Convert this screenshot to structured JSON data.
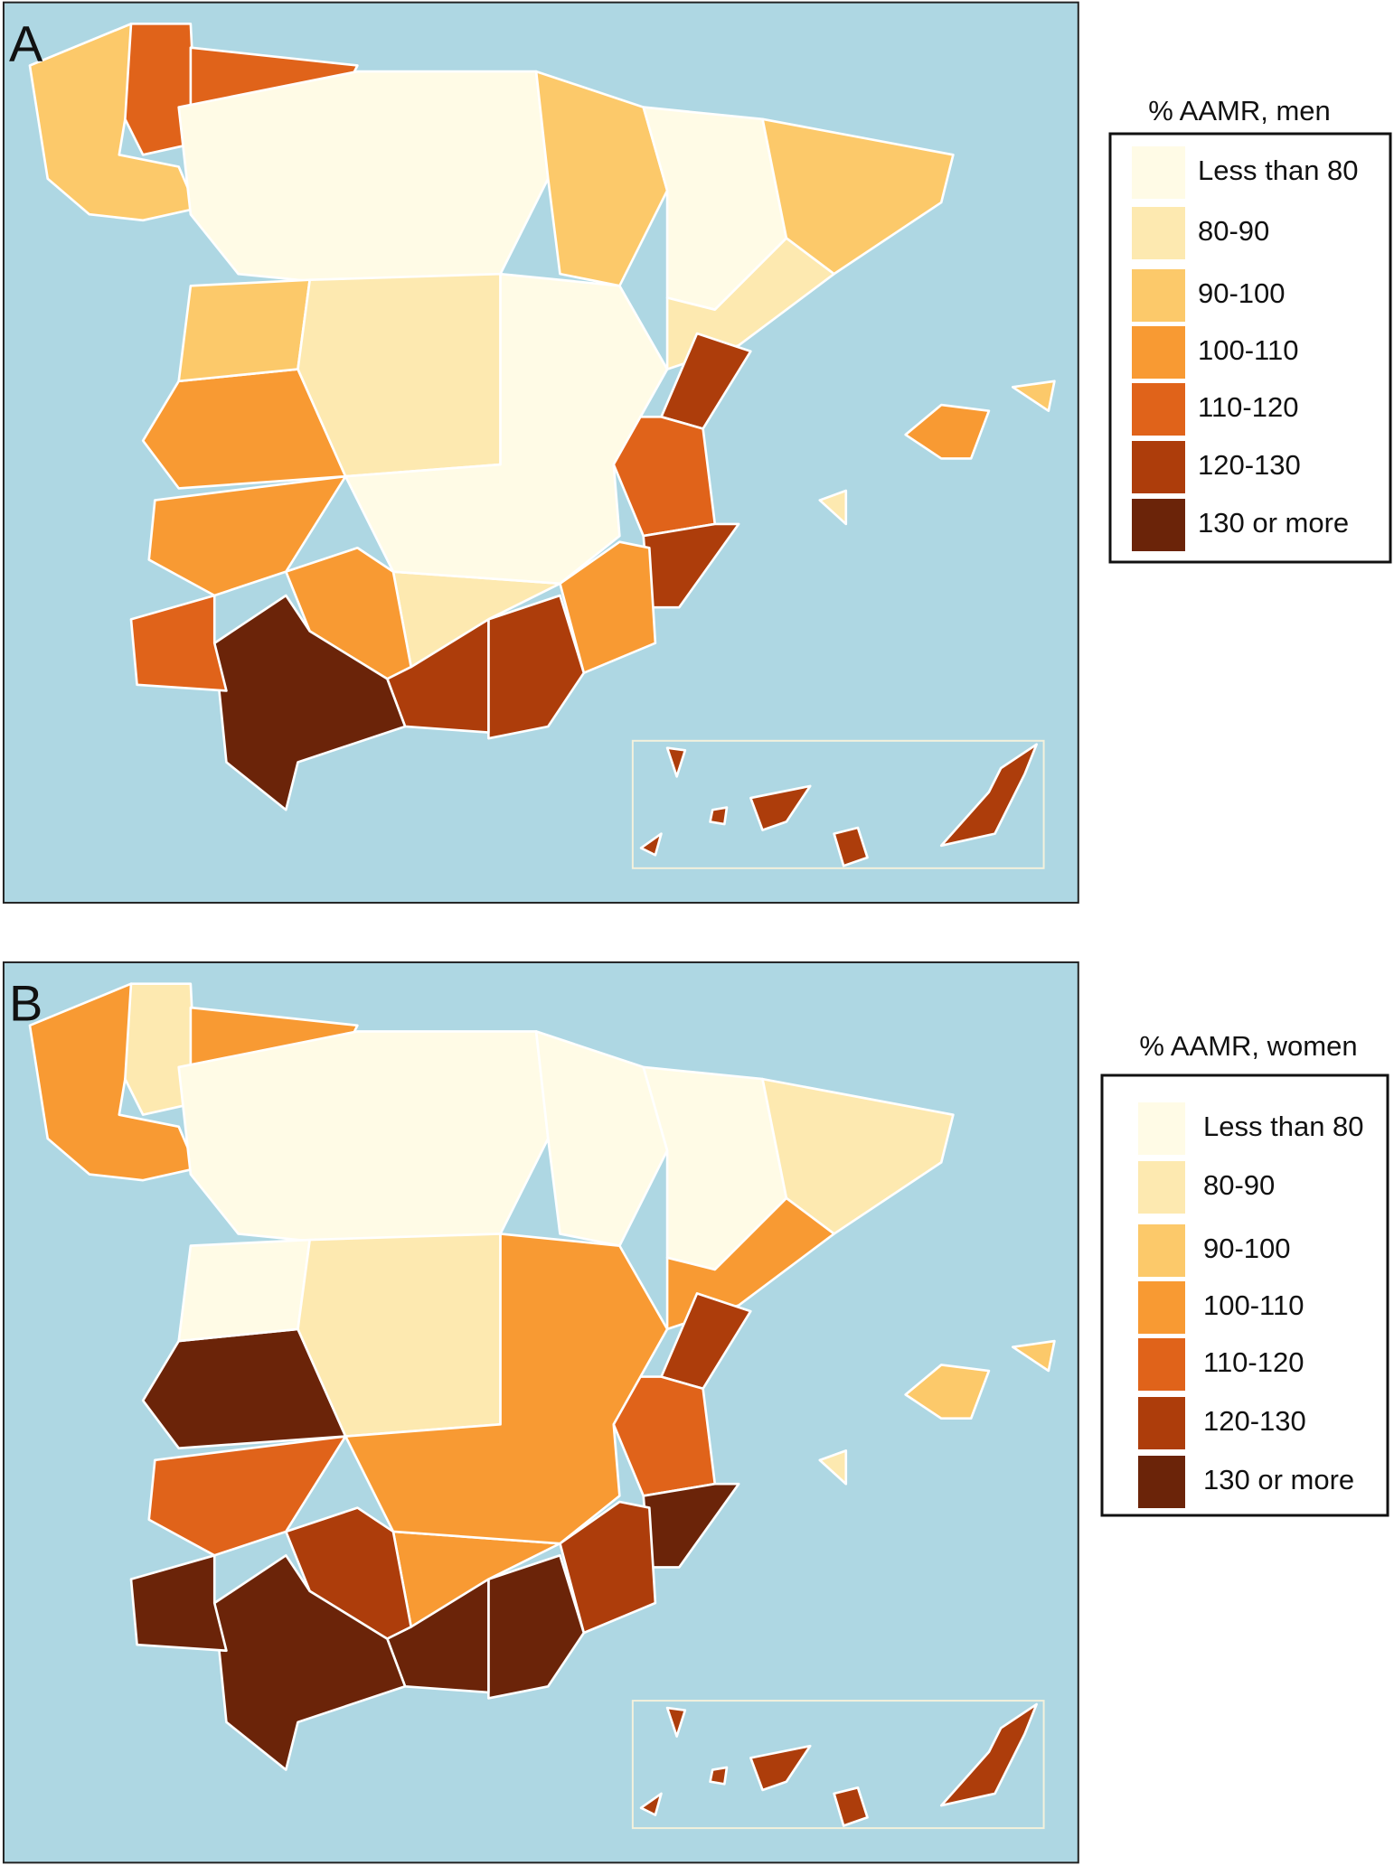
{
  "panels": [
    {
      "label": "A",
      "legend": {
        "title": "% AAMR, men",
        "items": [
          {
            "label": "Less than 80",
            "color": "#fffbe6"
          },
          {
            "label": "80-90",
            "color": "#fde9b0"
          },
          {
            "label": "90-100",
            "color": "#fcc96a"
          },
          {
            "label": "100-110",
            "color": "#f89a33"
          },
          {
            "label": "110-120",
            "color": "#e0631a"
          },
          {
            "label": "120-130",
            "color": "#ad3d0b"
          },
          {
            "label": "130 or more",
            "color": "#6b2409"
          }
        ]
      }
    },
    {
      "label": "B",
      "legend": {
        "title": "% AAMR, women",
        "items": [
          {
            "label": "Less than 80",
            "color": "#fffbe6"
          },
          {
            "label": "80-90",
            "color": "#fde9b0"
          },
          {
            "label": "90-100",
            "color": "#fcc96a"
          },
          {
            "label": "100-110",
            "color": "#f89a33"
          },
          {
            "label": "110-120",
            "color": "#e0631a"
          },
          {
            "label": "120-130",
            "color": "#ad3d0b"
          },
          {
            "label": "130 or more",
            "color": "#6b2409"
          }
        ]
      }
    }
  ]
}
